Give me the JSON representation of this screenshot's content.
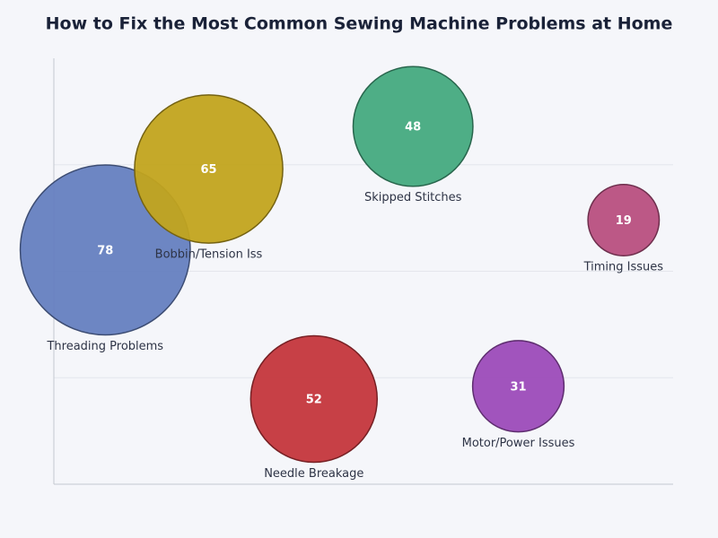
{
  "chart_data": {
    "type": "bubble",
    "title": "How to Fix the Most Common Sewing Machine Problems at Home",
    "categories": [
      "Threading Problems",
      "Bobbin/Tension Iss",
      "Skipped Stitches",
      "Timing Issues",
      "Needle Breakage",
      "Motor/Power Issues"
    ],
    "x": [
      8.3,
      25,
      58,
      92,
      42,
      75
    ],
    "y": [
      55,
      74,
      84,
      62,
      20,
      23
    ],
    "values": [
      78,
      65,
      48,
      19,
      52,
      31
    ],
    "colors": [
      "#6580c0",
      "#c2a41e",
      "#45aa80",
      "#b84f80",
      "#c4363c",
      "#9c4bb9"
    ],
    "xlim": [
      0,
      100
    ],
    "ylim": [
      0,
      100
    ],
    "yticks": [
      25,
      50,
      75
    ],
    "grid": true
  }
}
